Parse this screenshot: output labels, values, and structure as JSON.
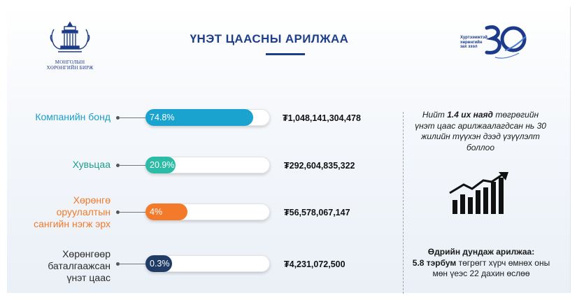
{
  "header": {
    "title": "ҮНЭТ ЦААСНЫ АРИЛЖАА",
    "left_logo_caption_line1": "МОНГОЛЫН",
    "left_logo_caption_line2": "ХӨРӨНГИЙН БИРЖ",
    "right_logo_text": "Хуртээмжтэй хөрөнгийн зах зээл",
    "right_logo_number": "30"
  },
  "rows": [
    {
      "label_lines": [
        "Компанийн бонд"
      ],
      "percent_text": "74.8%",
      "share": 74.8,
      "amount": "₮1,048,141,304,478",
      "color": "#1ba3d0",
      "label_color": "#1a9fc8"
    },
    {
      "label_lines": [
        "Хувьцаа"
      ],
      "percent_text": "20.9%",
      "share": 20.9,
      "amount": "₮292,604,835,322",
      "color": "#2bbba6",
      "label_color": "#1e9d8c"
    },
    {
      "label_lines": [
        "Хөрөнгө",
        "оруулалтын",
        "сангийн нэгж эрх"
      ],
      "percent_text": "4%",
      "share": 4,
      "amount": "₮56,578,067,147",
      "color": "#f27a2a",
      "label_color": "#f07a2b"
    },
    {
      "label_lines": [
        "Хөрөнгөөр",
        "баталгаажсан",
        "үнэт цаас"
      ],
      "percent_text": "0.3%",
      "share": 0.3,
      "amount": "₮4,231,072,500",
      "color": "#1f3b66",
      "label_color": "#2b2b2b"
    }
  ],
  "side_notes": {
    "note1_pre": "Нийт ",
    "note1_bold": "1.4 их наяд",
    "note1_post": " төгрөгийн үнэт цаас арилжаалагдсан нь 30 жилийн түүхэн дээд үзүүлэлт боллоо",
    "note2_bold_a": "Өдрийн дундаж арилжаа:",
    "note2_bold_b": "5.8 тэрбум",
    "note2_post": " төгрөгт хүрч өмнөх оны мөн үеэс 22 дахин өслөө"
  }
}
